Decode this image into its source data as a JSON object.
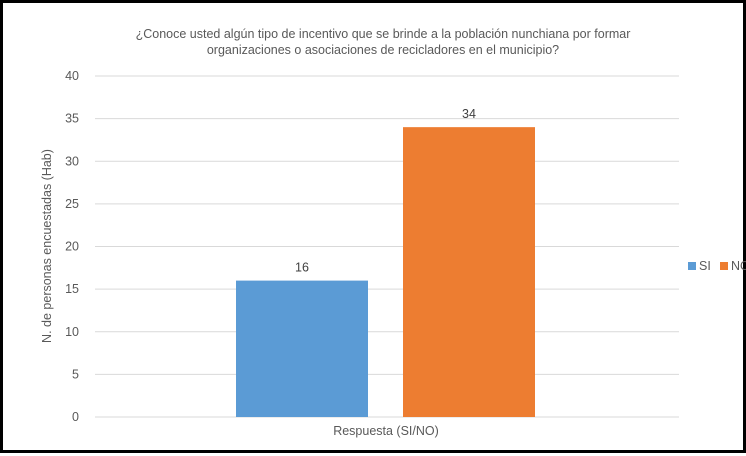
{
  "chart_data": {
    "type": "bar",
    "title_lines": [
      "¿Conoce usted algún tipo de incentivo que se brinde a la población nunchiana por formar",
      "organizaciones o asociaciones de recicladores en el municipio?"
    ],
    "xlabel": "Respuesta (SI/NO)",
    "ylabel": "N. de personas encuestadas (Hab)",
    "ylim": [
      0,
      40
    ],
    "yticks": [
      "0",
      "5",
      "10",
      "15",
      "20",
      "25",
      "30",
      "35",
      "40"
    ],
    "grid": true,
    "legend_position": "right",
    "series": [
      {
        "name": "SI",
        "values": [
          16
        ],
        "color": "#5b9bd5"
      },
      {
        "name": "NO",
        "values": [
          34
        ],
        "color": "#ed7d31"
      }
    ]
  }
}
